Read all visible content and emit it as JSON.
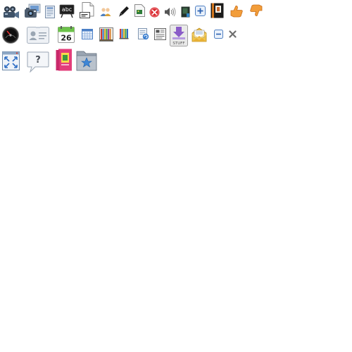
{
  "sheet": {
    "row1": [
      "video-camera-icon",
      "photo-camera-icon",
      "document-icon",
      "spellcheck-abc-icon",
      "blank-page-icon",
      "users-icon",
      "pencil-icon",
      "page-image-icon",
      "cancel-icon",
      "volume-icon",
      "book-green-icon",
      "add-icon",
      "book-dark-icon",
      "thumbs-up-icon",
      "thumbs-down-icon"
    ],
    "row2": [
      "speedometer-icon",
      "contact-card-icon",
      "calendar-icon",
      "calendar-grid-icon",
      "bookshelf-color-icon",
      "bookshelf-small-icon",
      "page-refresh-icon",
      "news-page-icon",
      "download-stuff-icon",
      "mail-open-icon",
      "minus-icon",
      "close-x-icon"
    ],
    "row3": [
      "fullscreen-icon",
      "help-bubble-icon",
      "book-red-icon",
      "favorites-folder-icon"
    ]
  },
  "labels": {
    "spellcheck": "abc",
    "calendar_day": "26",
    "download_label": "STUFF",
    "help_mark": "?"
  }
}
